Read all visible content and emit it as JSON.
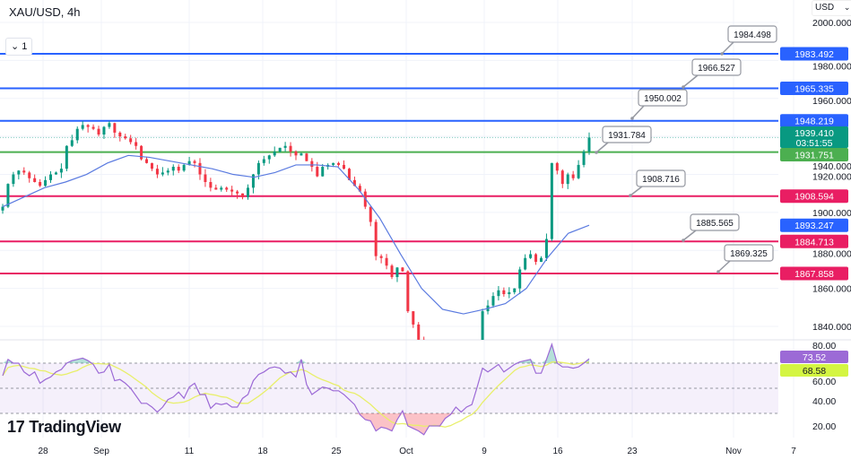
{
  "header": {
    "symbol_title": "XAU/USD, 4h",
    "indicator_toggle": "1",
    "currency": "USD"
  },
  "branding": {
    "logo_mark": "17",
    "logo_text": "TradingView"
  },
  "colors": {
    "up": "#089981",
    "down": "#f23645",
    "resistance": "#2962ff",
    "pivot": "#4caf50",
    "support": "#e91e63",
    "ma": "#5b7be0",
    "rsi": "#9c6ad6",
    "rsi_ma": "#e8ef6a",
    "rsi_label": "#9c6ad6",
    "rsi_ma_label": "#d4f542",
    "last_price": "#089981"
  },
  "chart_data": {
    "type": "candlestick",
    "symbol": "XAU/USD",
    "timeframe": "4h",
    "ylim": [
      1833,
      2010
    ],
    "y_ticks": [
      "2000.000",
      "1980.000",
      "1960.000",
      "1940.000",
      "1920.000",
      "1900.000",
      "1880.000",
      "1860.000",
      "1840.000"
    ],
    "x_ticks": [
      "28",
      "Sep",
      "11",
      "18",
      "25",
      "Oct",
      "9",
      "16",
      "23",
      "Nov",
      "7"
    ],
    "closes": [
      1903,
      1915,
      1920,
      1922,
      1921,
      1918,
      1916,
      1914,
      1917,
      1920,
      1921,
      1923,
      1935,
      1938,
      1944,
      1946,
      1945,
      1944,
      1941,
      1945,
      1947,
      1942,
      1940,
      1939,
      1937,
      1935,
      1928,
      1926,
      1923,
      1920,
      1921,
      1922,
      1924,
      1922,
      1925,
      1927,
      1926,
      1920,
      1916,
      1913,
      1912,
      1913,
      1912,
      1911,
      1910,
      1908,
      1913,
      1920,
      1926,
      1928,
      1930,
      1932,
      1934,
      1935,
      1932,
      1930,
      1931,
      1927,
      1924,
      1919,
      1924,
      1925,
      1926,
      1925,
      1923,
      1917,
      1914,
      1911,
      1903,
      1895,
      1877,
      1876,
      1872,
      1866,
      1871,
      1869,
      1848,
      1841,
      1833,
      1826,
      1820,
      1817,
      1816,
      1815,
      1818,
      1820,
      1819,
      1821,
      1822,
      1826,
      1848,
      1851,
      1856,
      1859,
      1857,
      1858,
      1860,
      1870,
      1876,
      1878,
      1874,
      1876,
      1886,
      1926,
      1922,
      1915,
      1920,
      1918,
      1925,
      1932,
      1939.41
    ],
    "moving_average": [
      1903,
      1908,
      1913,
      1916,
      1920,
      1926,
      1930,
      1929,
      1927,
      1925,
      1923,
      1920,
      1918.5,
      1921,
      1925,
      1925,
      1924,
      1912,
      1897,
      1878,
      1860,
      1849,
      1846.6,
      1849,
      1852,
      1860,
      1876,
      1889,
      1893.247
    ],
    "last_price": "1939.410",
    "countdown": "03:51:55",
    "levels": [
      {
        "price": 1983.492,
        "label": "1983.492",
        "kind": "resistance",
        "callout": "1984.498"
      },
      {
        "price": 1965.335,
        "label": "1965.335",
        "kind": "resistance",
        "callout": "1966.527"
      },
      {
        "price": 1948.219,
        "label": "1948.219",
        "kind": "resistance",
        "callout": "1950.002"
      },
      {
        "price": 1931.751,
        "label": "1931.751",
        "kind": "pivot",
        "callout": "1931.784"
      },
      {
        "price": 1908.594,
        "label": "1908.594",
        "kind": "support",
        "callout": "1908.716"
      },
      {
        "price": 1884.713,
        "label": "1884.713",
        "kind": "support",
        "callout": "1885.565"
      },
      {
        "price": 1867.858,
        "label": "1867.858",
        "kind": "support",
        "callout": "1869.325"
      }
    ],
    "ma_label": "1893.247",
    "rsi": {
      "ylim": [
        15,
        90
      ],
      "y_ticks": [
        "80.00",
        "60.00",
        "40.00",
        "20.00"
      ],
      "bands": [
        70,
        50,
        30
      ],
      "values": [
        60,
        73,
        70,
        70,
        63,
        60,
        63,
        54,
        57,
        59,
        63,
        65,
        70,
        72,
        73,
        74,
        72,
        69,
        62,
        63,
        69,
        56,
        57,
        54,
        50,
        44,
        38,
        38,
        35,
        31,
        35,
        41,
        43,
        47,
        42,
        51,
        54,
        45,
        45,
        34,
        38,
        37,
        38,
        35,
        35,
        42,
        45,
        56,
        61,
        63,
        66,
        67,
        66,
        62,
        63,
        59,
        73,
        53,
        45,
        48,
        51,
        50,
        48,
        48,
        45,
        41,
        37,
        29,
        25,
        24,
        16,
        19,
        18,
        16,
        25,
        32,
        20,
        18,
        16,
        13,
        20,
        20,
        20,
        26,
        29,
        35,
        31,
        35,
        37,
        51,
        66,
        63,
        66,
        69,
        63,
        66,
        69,
        71,
        72,
        73,
        62,
        62,
        73,
        85,
        70,
        67,
        67,
        66,
        67,
        70,
        73.52
      ],
      "value_label": "73.52",
      "ma_label": "68.58"
    }
  }
}
